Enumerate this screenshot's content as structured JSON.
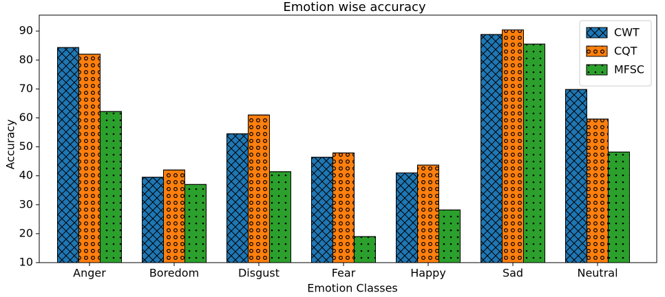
{
  "chart_data": {
    "type": "bar",
    "title": "Emotion wise accuracy",
    "x_label": "Emotion Classes",
    "y_label": "Accuracy",
    "categories": [
      "Anger",
      "Boredom",
      "Disgust",
      "Fear",
      "Happy",
      "Sad",
      "Neutral"
    ],
    "series": [
      {
        "name": "CWT",
        "color": "#1f77b4",
        "hatch": "x",
        "values": [
          84.3,
          39.5,
          54.5,
          46.4,
          41,
          88.8,
          69.8
        ]
      },
      {
        "name": "CQT",
        "color": "#ff7f0e",
        "hatch": "o",
        "values": [
          82,
          42,
          61,
          47.9,
          43.7,
          90.4,
          59.6
        ]
      },
      {
        "name": "MFSC",
        "color": "#2ca02c",
        "hatch": ".",
        "values": [
          62.2,
          37,
          41.4,
          19,
          28.2,
          85.5,
          48.2
        ]
      }
    ],
    "ylim": [
      10,
      95.5
    ],
    "yticks": [
      10,
      20,
      30,
      40,
      50,
      60,
      70,
      80,
      90
    ],
    "legend": "upper right"
  }
}
